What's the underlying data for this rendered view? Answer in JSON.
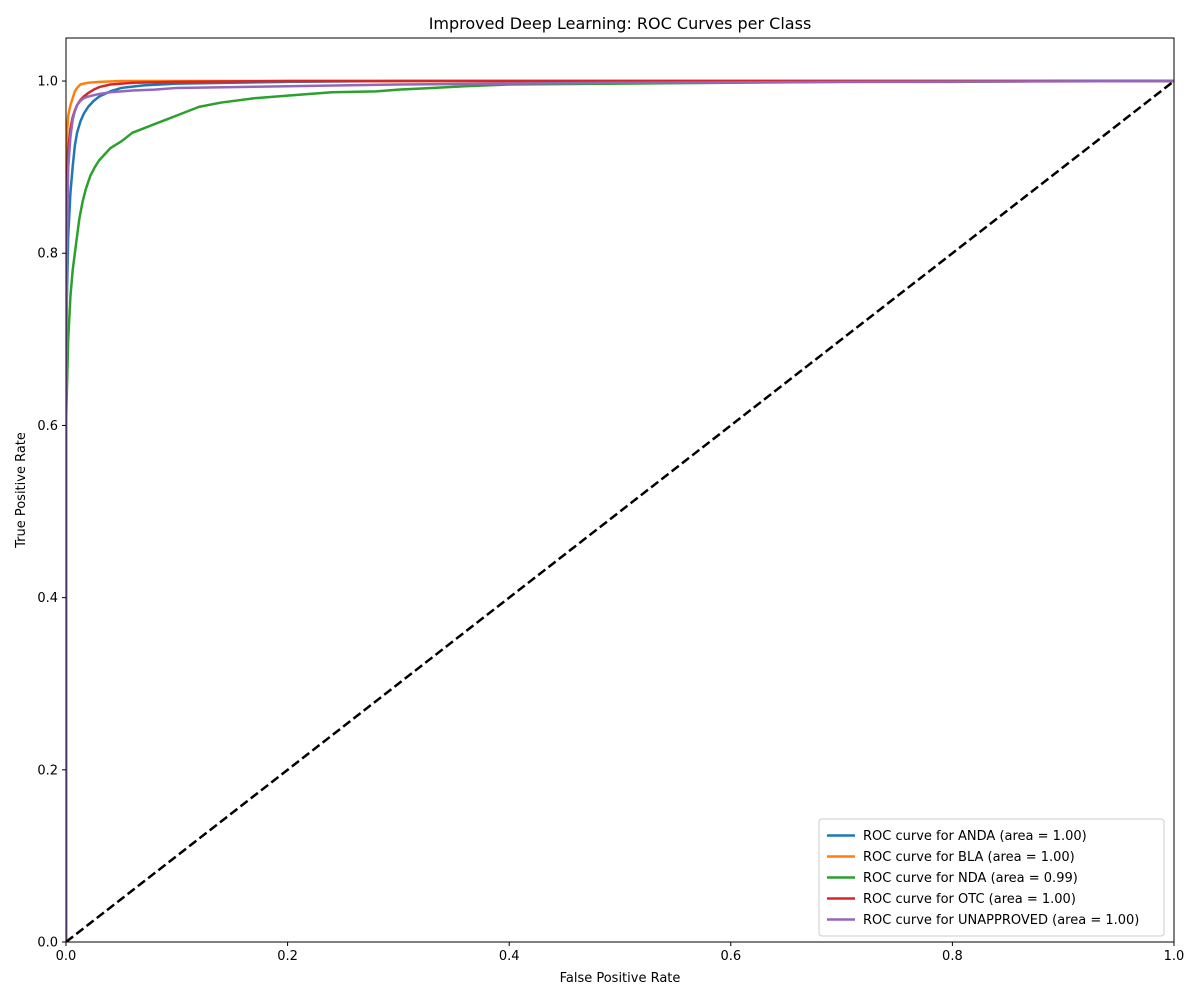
{
  "chart_data": {
    "type": "line",
    "title": "Improved Deep Learning: ROC Curves per Class",
    "xlabel": "False Positive Rate",
    "ylabel": "True Positive Rate",
    "xlim": [
      0.0,
      1.0
    ],
    "ylim": [
      0.0,
      1.05
    ],
    "xticks": [
      "0.0",
      "0.2",
      "0.4",
      "0.6",
      "0.8",
      "1.0"
    ],
    "yticks": [
      "0.0",
      "0.2",
      "0.4",
      "0.6",
      "0.8",
      "1.0"
    ],
    "grid": false,
    "legend_position": "lower-right",
    "diagonal": {
      "x": [
        0,
        1
      ],
      "y": [
        0,
        1
      ],
      "color": "#000000",
      "style": "dashed"
    },
    "series": [
      {
        "name": "ROC curve for ANDA (area = 1.00)",
        "color": "#1f77b4",
        "x": [
          0,
          0,
          0.001,
          0.002,
          0.004,
          0.006,
          0.008,
          0.01,
          0.013,
          0.016,
          0.02,
          0.025,
          0.03,
          0.04,
          0.05,
          0.07,
          0.1,
          0.15,
          0.2,
          0.3,
          0.5,
          0.7,
          1.0
        ],
        "y": [
          0,
          0.7,
          0.76,
          0.82,
          0.87,
          0.9,
          0.925,
          0.94,
          0.953,
          0.962,
          0.97,
          0.977,
          0.982,
          0.988,
          0.992,
          0.995,
          0.997,
          0.998,
          0.999,
          1.0,
          1.0,
          1.0,
          1.0
        ]
      },
      {
        "name": "ROC curve for BLA (area = 1.00)",
        "color": "#ff7f0e",
        "x": [
          0,
          0,
          0.001,
          0.002,
          0.004,
          0.006,
          0.008,
          0.01,
          0.013,
          0.016,
          0.02,
          0.03,
          0.05,
          0.1,
          0.3,
          0.6,
          1.0
        ],
        "y": [
          0,
          0.9,
          0.94,
          0.96,
          0.972,
          0.98,
          0.988,
          0.992,
          0.996,
          0.997,
          0.998,
          0.999,
          1.0,
          1.0,
          1.0,
          1.0,
          1.0
        ]
      },
      {
        "name": "ROC curve for NDA (area = 0.99)",
        "color": "#2ca02c",
        "x": [
          0,
          0,
          0.002,
          0.004,
          0.006,
          0.008,
          0.01,
          0.012,
          0.015,
          0.018,
          0.022,
          0.026,
          0.03,
          0.035,
          0.04,
          0.05,
          0.06,
          0.07,
          0.08,
          0.09,
          0.1,
          0.12,
          0.14,
          0.17,
          0.2,
          0.24,
          0.28,
          0.3,
          0.33,
          0.36,
          0.4,
          0.5,
          0.6,
          0.7,
          0.8,
          0.9,
          1.0
        ],
        "y": [
          0,
          0.6,
          0.7,
          0.75,
          0.78,
          0.8,
          0.82,
          0.84,
          0.86,
          0.875,
          0.89,
          0.9,
          0.908,
          0.915,
          0.922,
          0.93,
          0.94,
          0.945,
          0.95,
          0.955,
          0.96,
          0.97,
          0.975,
          0.98,
          0.983,
          0.987,
          0.988,
          0.99,
          0.992,
          0.994,
          0.996,
          0.997,
          0.998,
          0.999,
          0.999,
          1.0,
          1.0
        ]
      },
      {
        "name": "ROC curve for OTC (area = 1.00)",
        "color": "#d62728",
        "x": [
          0,
          0,
          0.001,
          0.002,
          0.004,
          0.006,
          0.008,
          0.01,
          0.013,
          0.016,
          0.02,
          0.025,
          0.03,
          0.04,
          0.06,
          0.1,
          0.2,
          0.4,
          0.7,
          1.0
        ],
        "y": [
          0,
          0.8,
          0.87,
          0.92,
          0.945,
          0.958,
          0.966,
          0.972,
          0.978,
          0.982,
          0.986,
          0.99,
          0.993,
          0.996,
          0.998,
          0.999,
          1.0,
          1.0,
          1.0,
          1.0
        ]
      },
      {
        "name": "ROC curve for UNAPPROVED (area = 1.00)",
        "color": "#9467bd",
        "x": [
          0,
          0,
          0.001,
          0.002,
          0.004,
          0.006,
          0.008,
          0.01,
          0.013,
          0.016,
          0.02,
          0.03,
          0.04,
          0.05,
          0.06,
          0.08,
          0.1,
          0.2,
          0.3,
          0.5,
          0.7,
          1.0
        ],
        "y": [
          0,
          0.6,
          0.82,
          0.9,
          0.935,
          0.955,
          0.965,
          0.972,
          0.977,
          0.98,
          0.982,
          0.985,
          0.987,
          0.988,
          0.989,
          0.99,
          0.992,
          0.994,
          0.996,
          0.998,
          0.999,
          1.0
        ]
      }
    ]
  }
}
